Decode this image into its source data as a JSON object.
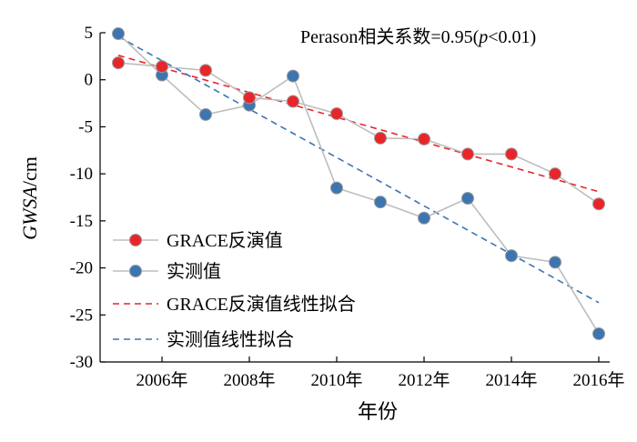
{
  "chart_data": {
    "type": "line",
    "annotation": {
      "prefix": "Perason相关系数=0.95(",
      "p": "p",
      "suffix": "<0.01)"
    },
    "ylabel": {
      "italic": "GWSA",
      "unit": "/cm"
    },
    "xlabel": "年份",
    "xlim": [
      2005,
      2016
    ],
    "ylim": [
      -30,
      5
    ],
    "yticks": [
      5,
      0,
      -5,
      -10,
      -15,
      -20,
      -25,
      -30
    ],
    "xticks": [
      2006,
      2008,
      2010,
      2012,
      2014,
      2016
    ],
    "xtick_suffix": "年",
    "grid": false,
    "legend_position": "bottom-left",
    "x": [
      2005,
      2006,
      2007,
      2008,
      2009,
      2010,
      2011,
      2012,
      2013,
      2014,
      2015,
      2016
    ],
    "series": [
      {
        "name": "GRACE反演值",
        "color": "#e8262a",
        "values": [
          1.8,
          1.4,
          1.0,
          -1.9,
          -2.3,
          -3.6,
          -6.2,
          -6.3,
          -7.9,
          -7.9,
          -10.0,
          -13.2
        ]
      },
      {
        "name": "实测值",
        "color": "#3d75b0",
        "values": [
          4.9,
          0.5,
          -3.7,
          -2.7,
          0.4,
          -11.5,
          -13.0,
          -14.7,
          -12.6,
          -18.7,
          -19.4,
          -27.0
        ]
      }
    ],
    "fits": [
      {
        "name": "GRACE反演值线性拟合",
        "color": "#e8262a",
        "start": 2.6,
        "end": -11.9
      },
      {
        "name": "实测值线性拟合",
        "color": "#3d75b0",
        "start": 4.6,
        "end": -23.7
      }
    ],
    "connector_color": "#bdbdbd"
  }
}
